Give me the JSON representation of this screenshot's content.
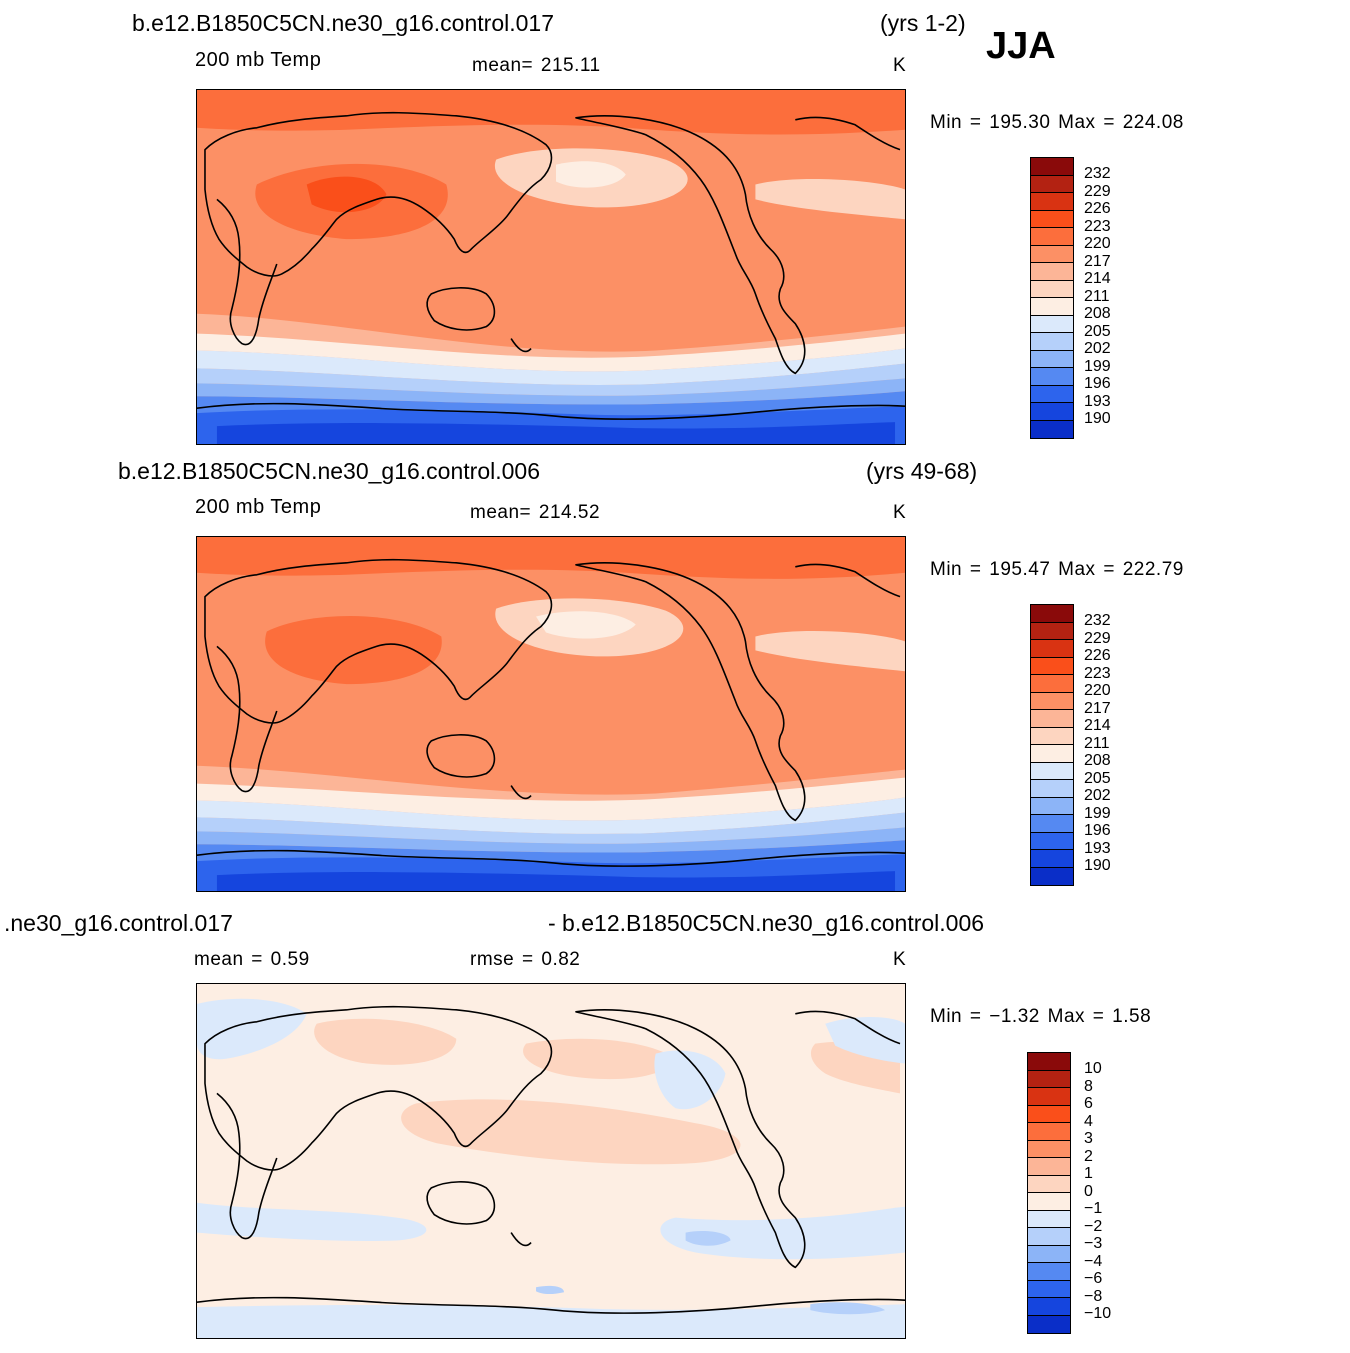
{
  "season": "JJA",
  "panels": [
    {
      "case": "b.e12.B1850C5CN.ne30_g16.control.017",
      "years": "(yrs 1-2)",
      "field": "200 mb Temp",
      "mean": "mean=  215.11",
      "units": "K",
      "minmax": "Min  =  195.30  Max  =  224.08",
      "levels": [
        "232",
        "229",
        "226",
        "223",
        "220",
        "217",
        "214",
        "211",
        "208",
        "205",
        "202",
        "199",
        "196",
        "193",
        "190"
      ]
    },
    {
      "case": "b.e12.B1850C5CN.ne30_g16.control.006",
      "years": "(yrs 49-68)",
      "field": "200 mb Temp",
      "mean": "mean=  214.52",
      "units": "K",
      "minmax": "Min  =  195.47  Max  =  222.79",
      "levels": [
        "232",
        "229",
        "226",
        "223",
        "220",
        "217",
        "214",
        "211",
        "208",
        "205",
        "202",
        "199",
        "196",
        "193",
        "190"
      ]
    },
    {
      "case_left": ".ne30_g16.control.017",
      "case_right": "- b.e12.B1850C5CN.ne30_g16.control.006",
      "mean": "mean  =     0.59",
      "rmse": "rmse  =     0.82",
      "units": "K",
      "minmax": "Min  =    −1.32  Max  =      1.58",
      "levels": [
        "10",
        "8",
        "6",
        "4",
        "3",
        "2",
        "1",
        "0",
        "−1",
        "−2",
        "−3",
        "−4",
        "−6",
        "−8",
        "−10"
      ]
    }
  ],
  "colormap": [
    "#8a0a0a",
    "#b32212",
    "#d93312",
    "#fa4f1a",
    "#fc6e3c",
    "#fc9065",
    "#fcb597",
    "#fdd5c0",
    "#fdeee3",
    "#dbe9fb",
    "#b5d0fa",
    "#8cb4f7",
    "#5589f2",
    "#2d64ed",
    "#1545de",
    "#0a2ec8",
    "#001493"
  ]
}
